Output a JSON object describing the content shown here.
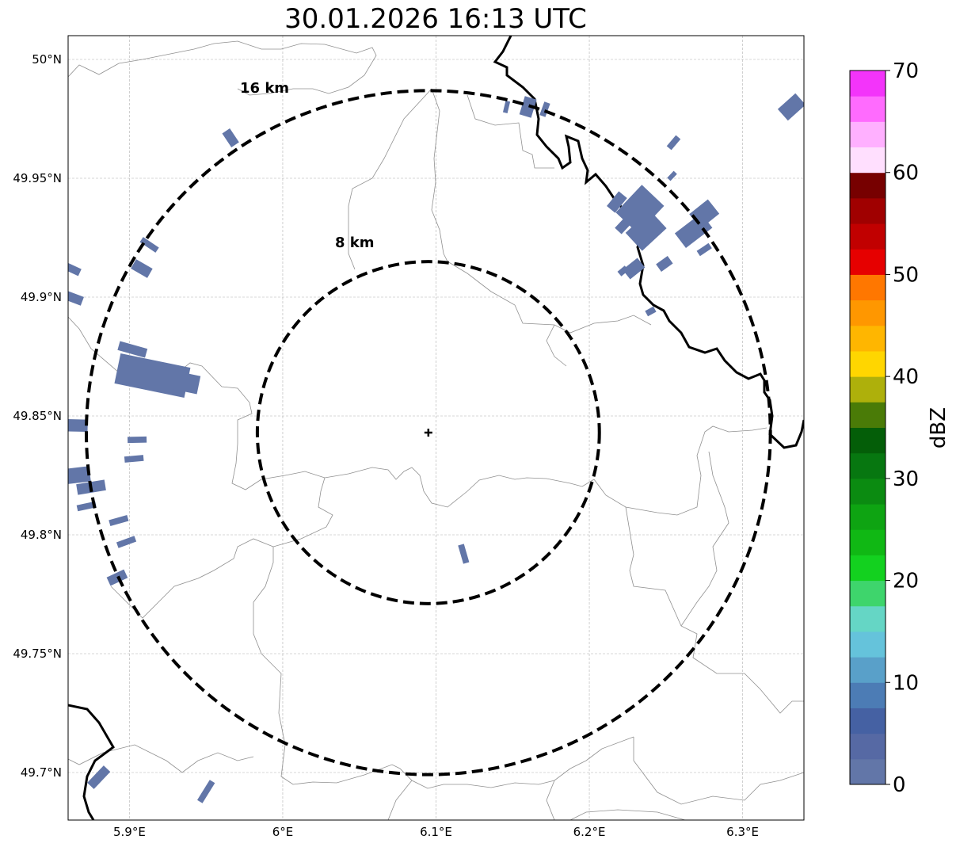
{
  "title": "30.01.2026 16:13 UTC",
  "map": {
    "lon_range": [
      5.86,
      6.34
    ],
    "lat_range": [
      49.68,
      50.01
    ],
    "lon_ticks": [
      {
        "value": 5.9,
        "label": "5.9°E"
      },
      {
        "value": 6.0,
        "label": "6°E"
      },
      {
        "value": 6.1,
        "label": "6.1°E"
      },
      {
        "value": 6.2,
        "label": "6.2°E"
      },
      {
        "value": 6.3,
        "label": "6.3°E"
      }
    ],
    "lat_ticks": [
      {
        "value": 50.0,
        "label": "50°N"
      },
      {
        "value": 49.95,
        "label": "49.95°N"
      },
      {
        "value": 49.9,
        "label": "49.9°N"
      },
      {
        "value": 49.85,
        "label": "49.85°N"
      },
      {
        "value": 49.8,
        "label": "49.8°N"
      },
      {
        "value": 49.75,
        "label": "49.75°N"
      },
      {
        "value": 49.7,
        "label": "49.7°N"
      }
    ],
    "radar_site": {
      "lon": 6.095,
      "lat": 49.843
    },
    "range_rings": [
      {
        "radius_km": 8,
        "label": "8 km"
      },
      {
        "radius_km": 16,
        "label": "16 km"
      }
    ],
    "echo_color": "#6276a8",
    "echoes": [
      {
        "lon": 5.915,
        "lat": 49.867,
        "w": 0.02,
        "h": 0.03
      },
      {
        "lon": 5.93,
        "lat": 49.865,
        "w": 0.012,
        "h": 0.02
      },
      {
        "lon": 5.902,
        "lat": 49.878,
        "w": 0.006,
        "h": 0.012
      },
      {
        "lon": 5.908,
        "lat": 49.912,
        "w": 0.007,
        "h": 0.008
      },
      {
        "lon": 5.913,
        "lat": 49.922,
        "w": 0.004,
        "h": 0.008
      },
      {
        "lon": 5.862,
        "lat": 49.912,
        "w": 0.005,
        "h": 0.008
      },
      {
        "lon": 5.862,
        "lat": 49.9,
        "w": 0.006,
        "h": 0.01
      },
      {
        "lon": 5.865,
        "lat": 49.846,
        "w": 0.008,
        "h": 0.01
      },
      {
        "lon": 5.865,
        "lat": 49.825,
        "w": 0.01,
        "h": 0.012
      },
      {
        "lon": 5.875,
        "lat": 49.82,
        "w": 0.007,
        "h": 0.012
      },
      {
        "lon": 5.872,
        "lat": 49.812,
        "w": 0.004,
        "h": 0.008
      },
      {
        "lon": 5.905,
        "lat": 49.84,
        "w": 0.004,
        "h": 0.008
      },
      {
        "lon": 5.903,
        "lat": 49.832,
        "w": 0.004,
        "h": 0.008
      },
      {
        "lon": 5.893,
        "lat": 49.806,
        "w": 0.004,
        "h": 0.008
      },
      {
        "lon": 5.898,
        "lat": 49.797,
        "w": 0.004,
        "h": 0.008
      },
      {
        "lon": 5.892,
        "lat": 49.782,
        "w": 0.006,
        "h": 0.008
      },
      {
        "lon": 5.966,
        "lat": 49.967,
        "w": 0.006,
        "h": 0.007
      },
      {
        "lon": 6.16,
        "lat": 49.98,
        "w": 0.008,
        "h": 0.008
      },
      {
        "lon": 6.146,
        "lat": 49.98,
        "w": 0.003,
        "h": 0.005
      },
      {
        "lon": 6.171,
        "lat": 49.979,
        "w": 0.004,
        "h": 0.006
      },
      {
        "lon": 6.233,
        "lat": 49.937,
        "w": 0.02,
        "h": 0.016
      },
      {
        "lon": 6.237,
        "lat": 49.928,
        "w": 0.016,
        "h": 0.014
      },
      {
        "lon": 6.218,
        "lat": 49.94,
        "w": 0.007,
        "h": 0.008
      },
      {
        "lon": 6.222,
        "lat": 49.93,
        "w": 0.006,
        "h": 0.006
      },
      {
        "lon": 6.268,
        "lat": 49.928,
        "w": 0.012,
        "h": 0.014
      },
      {
        "lon": 6.275,
        "lat": 49.935,
        "w": 0.012,
        "h": 0.01
      },
      {
        "lon": 6.255,
        "lat": 49.965,
        "w": 0.004,
        "h": 0.006
      },
      {
        "lon": 6.254,
        "lat": 49.951,
        "w": 0.003,
        "h": 0.004
      },
      {
        "lon": 6.229,
        "lat": 49.912,
        "w": 0.008,
        "h": 0.008
      },
      {
        "lon": 6.249,
        "lat": 49.914,
        "w": 0.006,
        "h": 0.006
      },
      {
        "lon": 6.24,
        "lat": 49.926,
        "w": 0.006,
        "h": 0.006
      },
      {
        "lon": 6.222,
        "lat": 49.911,
        "w": 0.004,
        "h": 0.004
      },
      {
        "lon": 6.24,
        "lat": 49.894,
        "w": 0.004,
        "h": 0.004
      },
      {
        "lon": 6.275,
        "lat": 49.92,
        "w": 0.004,
        "h": 0.006
      },
      {
        "lon": 6.332,
        "lat": 49.98,
        "w": 0.01,
        "h": 0.01
      },
      {
        "lon": 6.118,
        "lat": 49.792,
        "w": 0.004,
        "h": 0.008
      },
      {
        "lon": 5.95,
        "lat": 49.692,
        "w": 0.004,
        "h": 0.01
      },
      {
        "lon": 5.88,
        "lat": 49.698,
        "w": 0.006,
        "h": 0.01
      }
    ]
  },
  "colorbar": {
    "label": "dBZ",
    "min": 0,
    "max": 70,
    "tick_labels": [
      "0",
      "10",
      "20",
      "30",
      "40",
      "50",
      "60",
      "70"
    ],
    "colors": [
      "#6276a8",
      "#5669a4",
      "#4561a3",
      "#4c7cb5",
      "#59a0c9",
      "#65c3db",
      "#65d6c5",
      "#3ed56c",
      "#13d11f",
      "#10b814",
      "#0ea412",
      "#0b8b11",
      "#077710",
      "#045e08",
      "#4a7b07",
      "#aeb00b",
      "#ffd600",
      "#ffb600",
      "#ff9700",
      "#ff7700",
      "#e60000",
      "#c10000",
      "#a00000",
      "#770000",
      "#ffdffe",
      "#ffb0ff",
      "#ff6bfe",
      "#f334fa"
    ]
  }
}
